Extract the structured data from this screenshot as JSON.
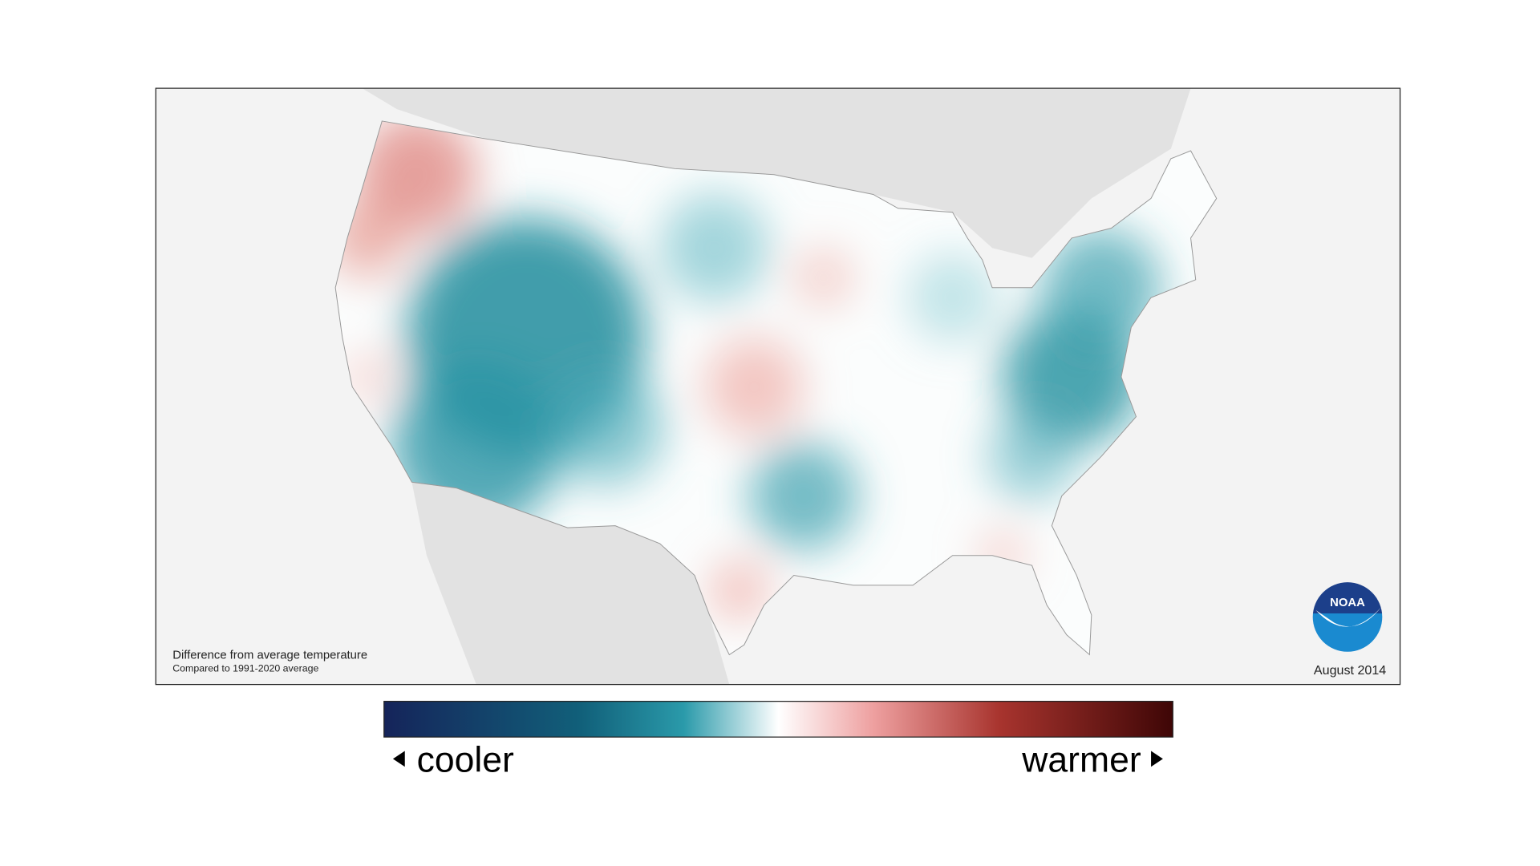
{
  "map": {
    "note_title": "Difference from average temperature",
    "note_subtitle": "Compared to 1991-2020 average",
    "date": "August 2014",
    "logo": "NOAA"
  },
  "legend": {
    "low_label": "cooler",
    "high_label": "warmer"
  }
}
